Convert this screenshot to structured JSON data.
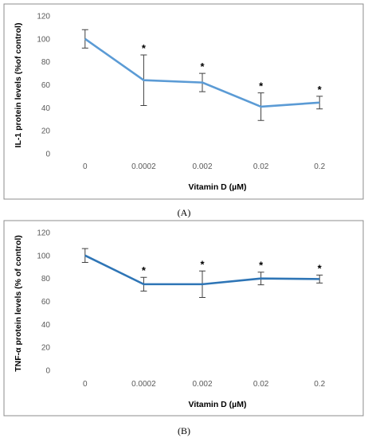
{
  "figures": [
    {
      "panel_label": "(A)",
      "colors": {
        "line": "#5b9bd5",
        "error_bar": "#404040",
        "frame": "#8c8c8c"
      }
    },
    {
      "panel_label": "(B)",
      "colors": {
        "line": "#2e75b6",
        "error_bar": "#404040",
        "frame": "#8c8c8c"
      }
    }
  ],
  "chart_data": [
    {
      "type": "line",
      "title": "",
      "xlabel": "Vitamin D (µM)",
      "ylabel": "IL-1 protein levels (%of control)",
      "categories": [
        "0",
        "0.0002",
        "0.002",
        "0.02",
        "0.2"
      ],
      "series": [
        {
          "values": [
            100,
            64,
            62,
            41,
            44.5
          ],
          "error": [
            8,
            22,
            8,
            12,
            5.5
          ],
          "significance": [
            "",
            "*",
            "*",
            "*",
            "*"
          ]
        }
      ],
      "ylim": [
        0,
        120
      ],
      "yticks": [
        "0",
        "20",
        "40",
        "60",
        "80",
        "100",
        "120"
      ],
      "grid": false,
      "legend": "none"
    },
    {
      "type": "line",
      "title": "",
      "xlabel": "Vitamin D (µM)",
      "ylabel": "TNF-α protein levels (% of control)",
      "categories": [
        "0",
        "0.0002",
        "0.002",
        "0.02",
        "0.2"
      ],
      "series": [
        {
          "values": [
            100,
            75,
            75,
            80,
            79.5
          ],
          "error": [
            6,
            6,
            11.5,
            5.5,
            3.5
          ],
          "significance": [
            "",
            "*",
            "*",
            "*",
            "*"
          ]
        }
      ],
      "ylim": [
        0,
        120
      ],
      "yticks": [
        "0",
        "20",
        "40",
        "60",
        "80",
        "100",
        "120"
      ],
      "grid": false,
      "legend": "none"
    }
  ]
}
